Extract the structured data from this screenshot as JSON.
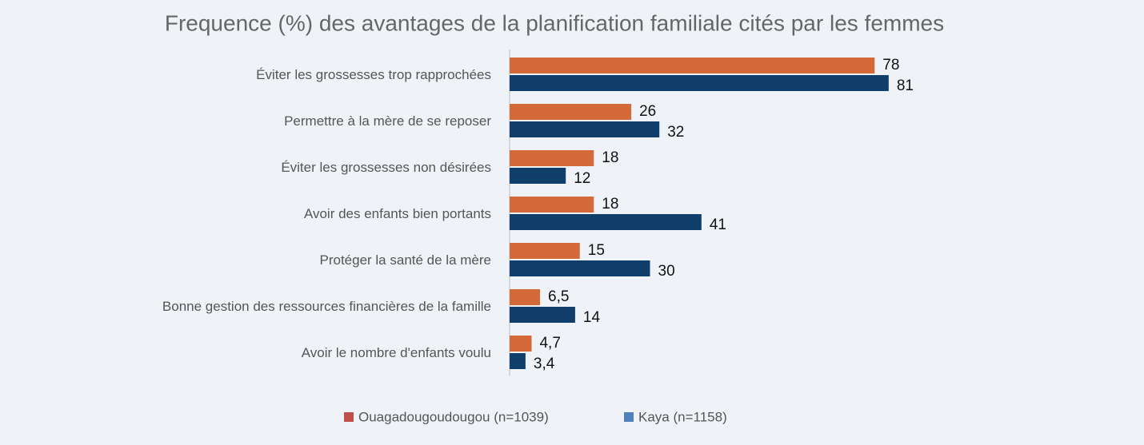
{
  "chart_data": {
    "type": "barh",
    "title": "Frequence (%) des avantages de la planification familiale cités par les femmes",
    "categories": [
      "Éviter les grossesses trop rapprochées",
      "Permettre à la mère de se reposer",
      "Éviter les grossesses non désirées",
      "Avoir des enfants bien portants",
      "Protéger la santé de la mère",
      "Bonne gestion des ressources financières de la famille",
      "Avoir le nombre d'enfants voulu"
    ],
    "series": [
      {
        "name": "Ouagadougoudougou (n=1039)",
        "color": "#d4693a",
        "legend_color": "#c0504d",
        "values": [
          78,
          26,
          18,
          18,
          15,
          6.5,
          4.7
        ],
        "value_labels": [
          "78",
          "26",
          "18",
          "18",
          "15",
          "6,5",
          "4,7"
        ]
      },
      {
        "name": "Kaya (n=1158)",
        "color": "#113f6c",
        "legend_color": "#4f81bd",
        "values": [
          81,
          32,
          12,
          41,
          30,
          14,
          3.4
        ],
        "value_labels": [
          "81",
          "32",
          "12",
          "41",
          "30",
          "14",
          "3,4"
        ]
      }
    ]
  }
}
